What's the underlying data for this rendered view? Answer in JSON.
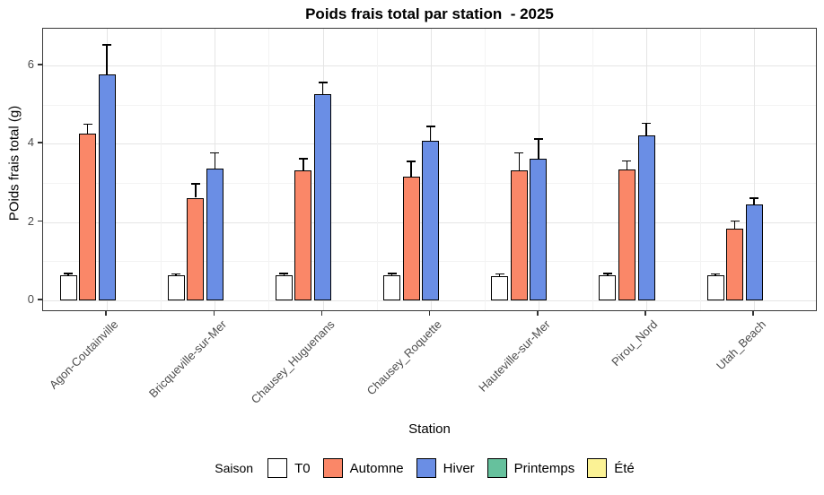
{
  "chart_data": {
    "type": "bar",
    "title": "Poids frais total par station  - 2025",
    "xlabel": "Station",
    "ylabel": "POids frais total (g)",
    "ylim": [
      -0.35,
      6.9
    ],
    "yticks": [
      0,
      2,
      4,
      6
    ],
    "grid": true,
    "legend_title": "Saison",
    "legend_position": "bottom",
    "error_bars": "upper standard error, black caps",
    "categories": [
      "Agon-Coutainville",
      "Bricqueville-sur-Mer",
      "Chausey_Huguenans",
      "Chausey_Roquette",
      "Hauteville-sur-Mer",
      "Pirou_Nord",
      "Utah_Beach"
    ],
    "series": [
      {
        "name": "T0",
        "color": "#FFFFFF",
        "values": [
          0.64,
          0.63,
          0.65,
          0.63,
          0.62,
          0.63,
          0.63
        ],
        "errors": [
          0.05,
          0.05,
          0.04,
          0.06,
          0.05,
          0.06,
          0.05
        ]
      },
      {
        "name": "Automne",
        "color": "#FA8768",
        "values": [
          4.25,
          2.62,
          3.32,
          3.15,
          3.32,
          3.34,
          1.82
        ],
        "errors": [
          0.25,
          0.36,
          0.3,
          0.4,
          0.45,
          0.22,
          0.2
        ]
      },
      {
        "name": "Hiver",
        "color": "#6A8EE5",
        "values": [
          5.76,
          3.37,
          5.26,
          4.08,
          3.62,
          4.22,
          2.44
        ],
        "errors": [
          0.76,
          0.4,
          0.3,
          0.36,
          0.5,
          0.3,
          0.17
        ]
      },
      {
        "name": "Printemps",
        "color": "#66C19D",
        "values": [],
        "errors": []
      },
      {
        "name": "Été",
        "color": "#FBF295",
        "values": [],
        "errors": []
      }
    ]
  }
}
